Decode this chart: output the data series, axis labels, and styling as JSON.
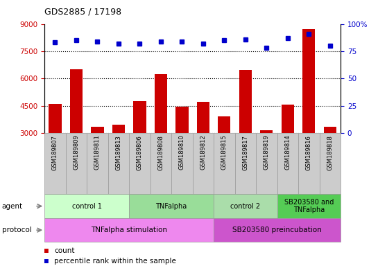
{
  "title": "GDS2885 / 17198",
  "samples": [
    "GSM189807",
    "GSM189809",
    "GSM189811",
    "GSM189813",
    "GSM189806",
    "GSM189808",
    "GSM189810",
    "GSM189812",
    "GSM189815",
    "GSM189817",
    "GSM189819",
    "GSM189814",
    "GSM189816",
    "GSM189818"
  ],
  "counts": [
    4600,
    6500,
    3350,
    3450,
    4750,
    6250,
    4450,
    4700,
    3900,
    6450,
    3150,
    4550,
    8700,
    3350
  ],
  "percentiles": [
    83,
    85,
    84,
    82,
    82,
    84,
    84,
    82,
    85,
    86,
    78,
    87,
    91,
    80
  ],
  "ylim_left": [
    3000,
    9000
  ],
  "ylim_right": [
    0,
    100
  ],
  "yticks_left": [
    3000,
    4500,
    6000,
    7500,
    9000
  ],
  "yticks_right": [
    0,
    25,
    50,
    75,
    100
  ],
  "bar_color": "#cc0000",
  "dot_color": "#0000cc",
  "agent_groups": [
    {
      "label": "control 1",
      "start": 0,
      "end": 3
    },
    {
      "label": "TNFalpha",
      "start": 4,
      "end": 7
    },
    {
      "label": "control 2",
      "start": 8,
      "end": 10
    },
    {
      "label": "SB203580 and\nTNFalpha",
      "start": 11,
      "end": 13
    }
  ],
  "agent_colors": [
    "#ccffcc",
    "#99dd99",
    "#aaddaa",
    "#55cc55"
  ],
  "protocol_groups": [
    {
      "label": "TNFalpha stimulation",
      "start": 0,
      "end": 7
    },
    {
      "label": "SB203580 preincubation",
      "start": 8,
      "end": 13
    }
  ],
  "protocol_colors": [
    "#ee88ee",
    "#cc55cc"
  ],
  "sample_box_color": "#cccccc",
  "legend_count_color": "#cc0000",
  "legend_pct_color": "#0000cc",
  "background_color": "#ffffff"
}
